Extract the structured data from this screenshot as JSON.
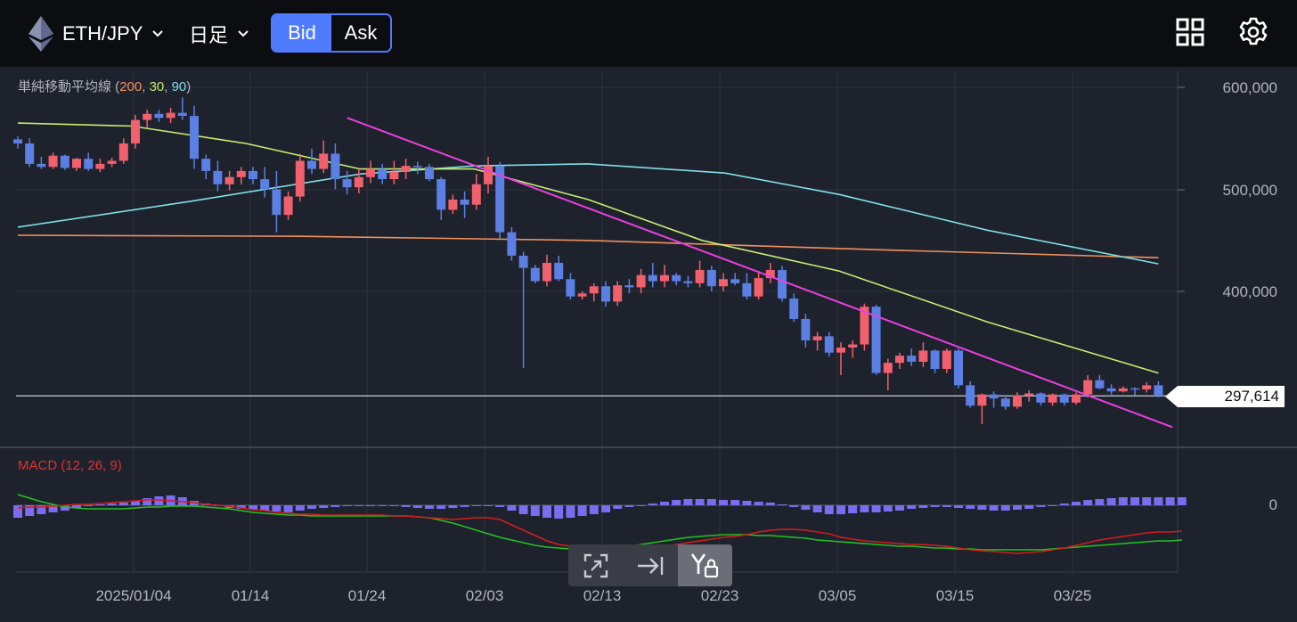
{
  "header": {
    "pair": "ETH/JPY",
    "timeframe": "日足",
    "bid_label": "Bid",
    "ask_label": "Ask",
    "active_side": "Bid",
    "icons": [
      "ethereum-icon",
      "grid-layout-icon",
      "settings-gear-icon"
    ]
  },
  "indicators": {
    "ma_label": "単純移動平均線",
    "ma_open": " (",
    "ma_p1": "200",
    "ma_sep1": ", ",
    "ma_p2": "30",
    "ma_sep2": ", ",
    "ma_p3": "90",
    "ma_close": ")",
    "macd_label": "MACD (12, 26, 9)"
  },
  "axis": {
    "price_ticks": [
      "600,000",
      "500,000",
      "400,000"
    ],
    "macd_zero": "0",
    "dates": [
      "2025/01/04",
      "01/14",
      "01/24",
      "02/03",
      "02/13",
      "02/23",
      "03/05",
      "03/15",
      "03/25"
    ]
  },
  "current_price": "297,614",
  "colors": {
    "up": "#f0616d",
    "down": "#5b7fe3",
    "ma200": "#f2915a",
    "ma30": "#c6ee6e",
    "ma90": "#7ee0e8",
    "trendline": "#e840e0",
    "macd": "#d41c1c",
    "signal": "#21c321",
    "histogram": "#7b6cf0",
    "accent": "#4f7cff"
  },
  "toolbar": {
    "icons": [
      "fullscreen-icon",
      "scroll-to-latest-icon",
      "lock-y-axis-icon"
    ]
  },
  "chart_data": [
    {
      "type": "candlestick",
      "title": "",
      "y_range": [
        260000,
        615000
      ],
      "x_labels": [
        "2025/01/04",
        "01/14",
        "01/24",
        "02/03",
        "02/13",
        "02/23",
        "03/05",
        "03/15",
        "03/25"
      ],
      "candles": [
        [
          549000,
          552000,
          540000,
          545000
        ],
        [
          545000,
          550000,
          522000,
          525000
        ],
        [
          525000,
          532000,
          520000,
          522000
        ],
        [
          522000,
          536000,
          520000,
          533000
        ],
        [
          533000,
          534000,
          519000,
          521000
        ],
        [
          521000,
          531000,
          518000,
          530000
        ],
        [
          530000,
          536000,
          518000,
          520000
        ],
        [
          520000,
          530000,
          517000,
          525000
        ],
        [
          525000,
          531000,
          522000,
          528000
        ],
        [
          528000,
          550000,
          525000,
          545000
        ],
        [
          545000,
          573000,
          540000,
          568000
        ],
        [
          568000,
          578000,
          560000,
          574000
        ],
        [
          574000,
          578000,
          566000,
          570000
        ],
        [
          570000,
          580000,
          565000,
          575000
        ],
        [
          575000,
          590000,
          568000,
          572000
        ],
        [
          572000,
          582000,
          520000,
          530000
        ],
        [
          530000,
          534000,
          510000,
          518000
        ],
        [
          518000,
          528000,
          498000,
          505000
        ],
        [
          505000,
          518000,
          499000,
          512000
        ],
        [
          512000,
          522000,
          505000,
          518000
        ],
        [
          518000,
          522000,
          505000,
          510000
        ],
        [
          510000,
          522000,
          492000,
          500000
        ],
        [
          500000,
          518000,
          458000,
          475000
        ],
        [
          475000,
          498000,
          470000,
          493000
        ],
        [
          493000,
          535000,
          488000,
          528000
        ],
        [
          528000,
          540000,
          515000,
          520000
        ],
        [
          520000,
          548000,
          516000,
          535000
        ],
        [
          535000,
          545000,
          500000,
          510000
        ],
        [
          510000,
          518000,
          495000,
          502000
        ],
        [
          502000,
          520000,
          496000,
          512000
        ],
        [
          512000,
          528000,
          506000,
          520000
        ],
        [
          520000,
          525000,
          505000,
          510000
        ],
        [
          510000,
          528000,
          505000,
          517000
        ],
        [
          517000,
          530000,
          510000,
          523000
        ],
        [
          523000,
          527000,
          515000,
          522000
        ],
        [
          522000,
          525000,
          508000,
          510000
        ],
        [
          510000,
          512000,
          470000,
          480000
        ],
        [
          480000,
          495000,
          476000,
          490000
        ],
        [
          490000,
          498000,
          472000,
          485000
        ],
        [
          485000,
          515000,
          480000,
          505000
        ],
        [
          505000,
          532000,
          496000,
          523000
        ],
        [
          523000,
          527000,
          452000,
          458000
        ],
        [
          458000,
          463000,
          430000,
          435000
        ],
        [
          435000,
          439000,
          325000,
          423000
        ],
        [
          423000,
          426000,
          408000,
          410000
        ],
        [
          410000,
          436000,
          405000,
          428000
        ],
        [
          428000,
          435000,
          410000,
          412000
        ],
        [
          412000,
          418000,
          392000,
          395000
        ],
        [
          395000,
          400000,
          392000,
          398000
        ],
        [
          398000,
          408000,
          390000,
          405000
        ],
        [
          405000,
          410000,
          385000,
          390000
        ],
        [
          390000,
          410000,
          386000,
          406000
        ],
        [
          406000,
          412000,
          398000,
          404000
        ],
        [
          404000,
          422000,
          398000,
          416000
        ],
        [
          416000,
          428000,
          404000,
          410000
        ],
        [
          410000,
          426000,
          404000,
          416000
        ],
        [
          416000,
          418000,
          406000,
          410000
        ],
        [
          410000,
          415000,
          404000,
          408000
        ],
        [
          408000,
          430000,
          404000,
          421000
        ],
        [
          421000,
          425000,
          400000,
          405000
        ],
        [
          405000,
          418000,
          400000,
          412000
        ],
        [
          412000,
          418000,
          406000,
          408000
        ],
        [
          408000,
          418000,
          392000,
          395000
        ],
        [
          395000,
          420000,
          392000,
          413000
        ],
        [
          413000,
          428000,
          408000,
          421000
        ],
        [
          421000,
          425000,
          390000,
          393000
        ],
        [
          393000,
          398000,
          370000,
          373000
        ],
        [
          373000,
          378000,
          345000,
          352000
        ],
        [
          352000,
          360000,
          342000,
          356000
        ],
        [
          356000,
          360000,
          336000,
          340000
        ],
        [
          340000,
          350000,
          318000,
          345000
        ],
        [
          345000,
          352000,
          335000,
          348000
        ],
        [
          348000,
          388000,
          342000,
          385000
        ],
        [
          385000,
          387000,
          318000,
          320000
        ],
        [
          320000,
          334000,
          303000,
          330000
        ],
        [
          330000,
          340000,
          324000,
          337000
        ],
        [
          337000,
          344000,
          327000,
          331000
        ],
        [
          331000,
          350000,
          326000,
          342000
        ],
        [
          342000,
          343000,
          320000,
          324000
        ],
        [
          324000,
          344000,
          320000,
          342000
        ],
        [
          342000,
          344000,
          305000,
          308000
        ],
        [
          308000,
          312000,
          286000,
          288000
        ],
        [
          288000,
          300000,
          270000,
          299000
        ],
        [
          299000,
          302000,
          286000,
          295000
        ],
        [
          295000,
          298000,
          284000,
          287000
        ],
        [
          287000,
          301000,
          285000,
          298000
        ],
        [
          298000,
          303000,
          292000,
          300000
        ],
        [
          300000,
          301000,
          288000,
          291000
        ],
        [
          291000,
          300000,
          288000,
          299000
        ],
        [
          299000,
          300000,
          288000,
          291000
        ],
        [
          291000,
          301000,
          289000,
          299000
        ],
        [
          299000,
          318000,
          296000,
          313000
        ],
        [
          313000,
          318000,
          304000,
          305000
        ],
        [
          305000,
          309000,
          299000,
          302000
        ],
        [
          302000,
          307000,
          301000,
          305000
        ],
        [
          305000,
          306000,
          298000,
          304000
        ],
        [
          304000,
          311000,
          301000,
          308000
        ],
        [
          308000,
          312000,
          296000,
          297614
        ]
      ],
      "moving_averages": [
        {
          "name": "200",
          "values_start_end": [
            455000,
            433000
          ]
        },
        {
          "name": "30",
          "values_start_end": [
            565000,
            320000
          ]
        },
        {
          "name": "90",
          "values_start_end": [
            463000,
            427000
          ]
        }
      ],
      "trendline": {
        "from": [
          "01/24",
          570000
        ],
        "to": [
          "03/25+",
          267000
        ]
      },
      "last_price": 297614
    },
    {
      "type": "macd",
      "title": "MACD (12, 26, 9)",
      "zero_label": "0",
      "histogram": [
        -14,
        -12,
        -10,
        -8,
        -6,
        -3,
        -1,
        1,
        2,
        3,
        5,
        8,
        10,
        11,
        9,
        5,
        2,
        -1,
        -3,
        -4,
        -5,
        -6,
        -7,
        -8,
        -6,
        -4,
        -3,
        -2,
        -1,
        0,
        0,
        -1,
        -1,
        -2,
        -3,
        -4,
        -4,
        -3,
        -2,
        -1,
        -1,
        -2,
        -6,
        -10,
        -12,
        -14,
        -15,
        -14,
        -12,
        -10,
        -8,
        -4,
        -2,
        0,
        2,
        4,
        6,
        7,
        7,
        7,
        6,
        6,
        5,
        4,
        3,
        1,
        -2,
        -5,
        -8,
        -10,
        -10,
        -9,
        -8,
        -8,
        -7,
        -6,
        -4,
        -3,
        -2,
        -2,
        -3,
        -4,
        -5,
        -6,
        -6,
        -5,
        -4,
        -2,
        0,
        2,
        4,
        6,
        7,
        8,
        9,
        9,
        9,
        9,
        9,
        9
      ],
      "macd_line": [
        -3,
        -2,
        -2,
        -1,
        0,
        1,
        1,
        2,
        3,
        4,
        5,
        6,
        6,
        5,
        4,
        3,
        1,
        0,
        -1,
        -3,
        -5,
        -6,
        -8,
        -9,
        -10,
        -10,
        -11,
        -11,
        -11,
        -11,
        -11,
        -11,
        -12,
        -12,
        -13,
        -14,
        -15,
        -16,
        -15,
        -14,
        -14,
        -16,
        -22,
        -28,
        -34,
        -40,
        -44,
        -46,
        -48,
        -50,
        -52,
        -52,
        -52,
        -50,
        -48,
        -46,
        -44,
        -42,
        -40,
        -38,
        -36,
        -35,
        -33,
        -30,
        -28,
        -27,
        -27,
        -28,
        -30,
        -32,
        -36,
        -38,
        -40,
        -41,
        -42,
        -43,
        -44,
        -44,
        -45,
        -46,
        -48,
        -50,
        -51,
        -52,
        -53,
        -54,
        -53,
        -52,
        -50,
        -48,
        -45,
        -42,
        -39,
        -37,
        -35,
        -33,
        -31,
        -30,
        -30,
        -29
      ],
      "signal_line": [
        12,
        8,
        4,
        1,
        -2,
        -3,
        -4,
        -4,
        -4,
        -4,
        -3,
        -2,
        -2,
        -1,
        -1,
        -1,
        -2,
        -3,
        -4,
        -6,
        -8,
        -9,
        -10,
        -11,
        -11,
        -12,
        -12,
        -12,
        -12,
        -12,
        -12,
        -12,
        -12,
        -12,
        -13,
        -14,
        -17,
        -20,
        -24,
        -28,
        -32,
        -36,
        -39,
        -42,
        -45,
        -47,
        -48,
        -49,
        -49,
        -49,
        -48,
        -47,
        -46,
        -44,
        -42,
        -40,
        -38,
        -36,
        -35,
        -34,
        -33,
        -33,
        -33,
        -34,
        -34,
        -35,
        -36,
        -37,
        -39,
        -40,
        -41,
        -42,
        -43,
        -44,
        -45,
        -46,
        -46,
        -47,
        -48,
        -48,
        -49,
        -49,
        -50,
        -50,
        -50,
        -50,
        -50,
        -50,
        -49,
        -48,
        -47,
        -46,
        -45,
        -44,
        -43,
        -42,
        -41,
        -40,
        -40,
        -39
      ]
    }
  ]
}
